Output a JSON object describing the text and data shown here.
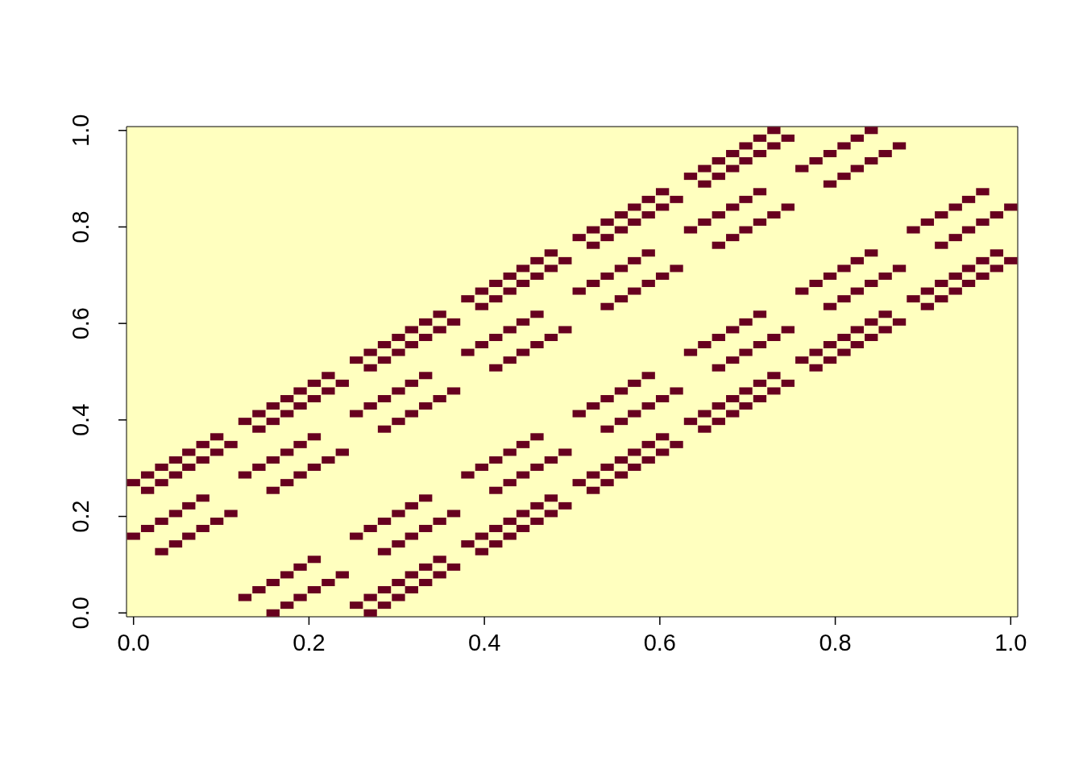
{
  "chart_data": {
    "type": "scatter",
    "color": "#67001f",
    "marker": "square",
    "xlim": [
      -0.008,
      1.008
    ],
    "ylim": [
      -0.008,
      1.008
    ],
    "xticks": [
      {
        "value": 0,
        "label": "0.0"
      },
      {
        "value": 0.2,
        "label": "0.2"
      },
      {
        "value": 0.4,
        "label": "0.4"
      },
      {
        "value": 0.6,
        "label": "0.6"
      },
      {
        "value": 0.8,
        "label": "0.8"
      },
      {
        "value": 1,
        "label": "1.0"
      }
    ],
    "yticks": [
      {
        "value": 0,
        "label": "0.0"
      },
      {
        "value": 0.2,
        "label": "0.2"
      },
      {
        "value": 0.4,
        "label": "0.4"
      },
      {
        "value": 0.6,
        "label": "0.6"
      },
      {
        "value": 0.8,
        "label": "0.8"
      },
      {
        "value": 1,
        "label": "1.0"
      }
    ],
    "x": [
      0,
      0,
      0.016,
      0.016,
      0.016,
      0.032,
      0.032,
      0.032,
      0.032,
      0.048,
      0.048,
      0.048,
      0.048,
      0.063,
      0.063,
      0.063,
      0.063,
      0.079,
      0.079,
      0.079,
      0.079,
      0.095,
      0.095,
      0.095,
      0.111,
      0.111,
      0.127,
      0.127,
      0.127,
      0.143,
      0.143,
      0.143,
      0.143,
      0.159,
      0.159,
      0.159,
      0.159,
      0.159,
      0.159,
      0.175,
      0.175,
      0.175,
      0.175,
      0.175,
      0.175,
      0.19,
      0.19,
      0.19,
      0.19,
      0.19,
      0.19,
      0.206,
      0.206,
      0.206,
      0.206,
      0.206,
      0.206,
      0.222,
      0.222,
      0.222,
      0.222,
      0.238,
      0.238,
      0.238,
      0.254,
      0.254,
      0.254,
      0.254,
      0.27,
      0.27,
      0.27,
      0.27,
      0.27,
      0.27,
      0.286,
      0.286,
      0.286,
      0.286,
      0.286,
      0.286,
      0.286,
      0.286,
      0.302,
      0.302,
      0.302,
      0.302,
      0.302,
      0.302,
      0.302,
      0.302,
      0.317,
      0.317,
      0.317,
      0.317,
      0.317,
      0.317,
      0.317,
      0.317,
      0.333,
      0.333,
      0.333,
      0.333,
      0.333,
      0.333,
      0.333,
      0.333,
      0.349,
      0.349,
      0.349,
      0.349,
      0.349,
      0.349,
      0.365,
      0.365,
      0.365,
      0.365,
      0.381,
      0.381,
      0.381,
      0.381,
      0.397,
      0.397,
      0.397,
      0.397,
      0.397,
      0.397,
      0.413,
      0.413,
      0.413,
      0.413,
      0.413,
      0.413,
      0.413,
      0.413,
      0.429,
      0.429,
      0.429,
      0.429,
      0.429,
      0.429,
      0.429,
      0.429,
      0.444,
      0.444,
      0.444,
      0.444,
      0.444,
      0.444,
      0.444,
      0.444,
      0.46,
      0.46,
      0.46,
      0.46,
      0.46,
      0.46,
      0.46,
      0.46,
      0.476,
      0.476,
      0.476,
      0.476,
      0.476,
      0.476,
      0.492,
      0.492,
      0.492,
      0.492,
      0.508,
      0.508,
      0.508,
      0.508,
      0.524,
      0.524,
      0.524,
      0.524,
      0.524,
      0.524,
      0.54,
      0.54,
      0.54,
      0.54,
      0.54,
      0.54,
      0.54,
      0.54,
      0.556,
      0.556,
      0.556,
      0.556,
      0.556,
      0.556,
      0.556,
      0.556,
      0.571,
      0.571,
      0.571,
      0.571,
      0.571,
      0.571,
      0.571,
      0.571,
      0.587,
      0.587,
      0.587,
      0.587,
      0.587,
      0.587,
      0.587,
      0.587,
      0.603,
      0.603,
      0.603,
      0.603,
      0.603,
      0.603,
      0.619,
      0.619,
      0.619,
      0.619,
      0.635,
      0.635,
      0.635,
      0.635,
      0.651,
      0.651,
      0.651,
      0.651,
      0.651,
      0.651,
      0.667,
      0.667,
      0.667,
      0.667,
      0.667,
      0.667,
      0.667,
      0.667,
      0.683,
      0.683,
      0.683,
      0.683,
      0.683,
      0.683,
      0.683,
      0.683,
      0.698,
      0.698,
      0.698,
      0.698,
      0.698,
      0.698,
      0.698,
      0.698,
      0.714,
      0.714,
      0.714,
      0.714,
      0.714,
      0.714,
      0.714,
      0.714,
      0.73,
      0.73,
      0.73,
      0.73,
      0.73,
      0.73,
      0.746,
      0.746,
      0.746,
      0.746,
      0.762,
      0.762,
      0.762,
      0.778,
      0.778,
      0.778,
      0.778,
      0.794,
      0.794,
      0.794,
      0.794,
      0.794,
      0.794,
      0.81,
      0.81,
      0.81,
      0.81,
      0.81,
      0.81,
      0.825,
      0.825,
      0.825,
      0.825,
      0.825,
      0.825,
      0.841,
      0.841,
      0.841,
      0.841,
      0.841,
      0.841,
      0.857,
      0.857,
      0.857,
      0.857,
      0.873,
      0.873,
      0.873,
      0.889,
      0.889,
      0.905,
      0.905,
      0.905,
      0.921,
      0.921,
      0.921,
      0.921,
      0.937,
      0.937,
      0.937,
      0.937,
      0.952,
      0.952,
      0.952,
      0.952,
      0.968,
      0.968,
      0.968,
      0.968,
      0.984,
      0.984,
      0.984,
      1,
      1
    ],
    "values": [
      0.159,
      0.27,
      0.175,
      0.254,
      0.286,
      0.127,
      0.19,
      0.27,
      0.302,
      0.143,
      0.206,
      0.286,
      0.317,
      0.159,
      0.222,
      0.302,
      0.333,
      0.175,
      0.238,
      0.317,
      0.349,
      0.19,
      0.333,
      0.365,
      0.206,
      0.349,
      0.032,
      0.286,
      0.397,
      0.048,
      0.302,
      0.381,
      0.413,
      0,
      0.063,
      0.254,
      0.317,
      0.397,
      0.429,
      0.016,
      0.079,
      0.27,
      0.333,
      0.413,
      0.444,
      0.032,
      0.095,
      0.286,
      0.349,
      0.429,
      0.46,
      0.048,
      0.111,
      0.302,
      0.365,
      0.444,
      0.476,
      0.063,
      0.317,
      0.46,
      0.492,
      0.079,
      0.333,
      0.476,
      0.016,
      0.159,
      0.413,
      0.524,
      0,
      0.032,
      0.175,
      0.429,
      0.508,
      0.54,
      0.016,
      0.048,
      0.127,
      0.19,
      0.381,
      0.444,
      0.524,
      0.556,
      0.032,
      0.063,
      0.143,
      0.206,
      0.397,
      0.46,
      0.54,
      0.571,
      0.048,
      0.079,
      0.159,
      0.222,
      0.413,
      0.476,
      0.556,
      0.587,
      0.063,
      0.095,
      0.175,
      0.238,
      0.429,
      0.492,
      0.571,
      0.603,
      0.079,
      0.111,
      0.19,
      0.444,
      0.587,
      0.619,
      0.095,
      0.206,
      0.46,
      0.603,
      0.143,
      0.286,
      0.54,
      0.651,
      0.127,
      0.159,
      0.302,
      0.556,
      0.635,
      0.667,
      0.143,
      0.175,
      0.254,
      0.317,
      0.508,
      0.571,
      0.651,
      0.683,
      0.159,
      0.19,
      0.27,
      0.333,
      0.524,
      0.587,
      0.667,
      0.698,
      0.175,
      0.206,
      0.286,
      0.349,
      0.54,
      0.603,
      0.683,
      0.714,
      0.19,
      0.222,
      0.302,
      0.365,
      0.556,
      0.619,
      0.698,
      0.73,
      0.206,
      0.238,
      0.317,
      0.571,
      0.714,
      0.746,
      0.222,
      0.333,
      0.587,
      0.73,
      0.27,
      0.413,
      0.667,
      0.778,
      0.254,
      0.286,
      0.429,
      0.683,
      0.762,
      0.794,
      0.27,
      0.302,
      0.381,
      0.444,
      0.635,
      0.698,
      0.778,
      0.81,
      0.286,
      0.317,
      0.397,
      0.46,
      0.651,
      0.714,
      0.794,
      0.825,
      0.302,
      0.333,
      0.413,
      0.476,
      0.667,
      0.73,
      0.81,
      0.841,
      0.317,
      0.349,
      0.429,
      0.492,
      0.683,
      0.746,
      0.825,
      0.857,
      0.333,
      0.365,
      0.444,
      0.698,
      0.841,
      0.873,
      0.349,
      0.46,
      0.714,
      0.857,
      0.397,
      0.54,
      0.794,
      0.905,
      0.381,
      0.413,
      0.556,
      0.81,
      0.889,
      0.921,
      0.397,
      0.429,
      0.508,
      0.571,
      0.762,
      0.825,
      0.905,
      0.937,
      0.413,
      0.444,
      0.524,
      0.587,
      0.778,
      0.841,
      0.921,
      0.952,
      0.429,
      0.46,
      0.54,
      0.603,
      0.794,
      0.857,
      0.937,
      0.968,
      0.444,
      0.476,
      0.556,
      0.619,
      0.81,
      0.873,
      0.952,
      0.984,
      0.46,
      0.492,
      0.571,
      0.825,
      0.968,
      1,
      0.476,
      0.587,
      0.841,
      0.984,
      0.524,
      0.667,
      0.921,
      0.508,
      0.54,
      0.683,
      0.937,
      0.524,
      0.556,
      0.635,
      0.698,
      0.889,
      0.952,
      0.54,
      0.571,
      0.651,
      0.714,
      0.905,
      0.968,
      0.556,
      0.587,
      0.667,
      0.73,
      0.921,
      0.984,
      0.571,
      0.603,
      0.683,
      0.746,
      0.937,
      1,
      0.587,
      0.619,
      0.698,
      0.952,
      0.603,
      0.714,
      0.968,
      0.651,
      0.794,
      0.635,
      0.667,
      0.81,
      0.651,
      0.683,
      0.762,
      0.825,
      0.667,
      0.698,
      0.778,
      0.841,
      0.683,
      0.714,
      0.794,
      0.857,
      0.698,
      0.73,
      0.81,
      0.873,
      0.714,
      0.746,
      0.825,
      0.73,
      0.841
    ]
  }
}
